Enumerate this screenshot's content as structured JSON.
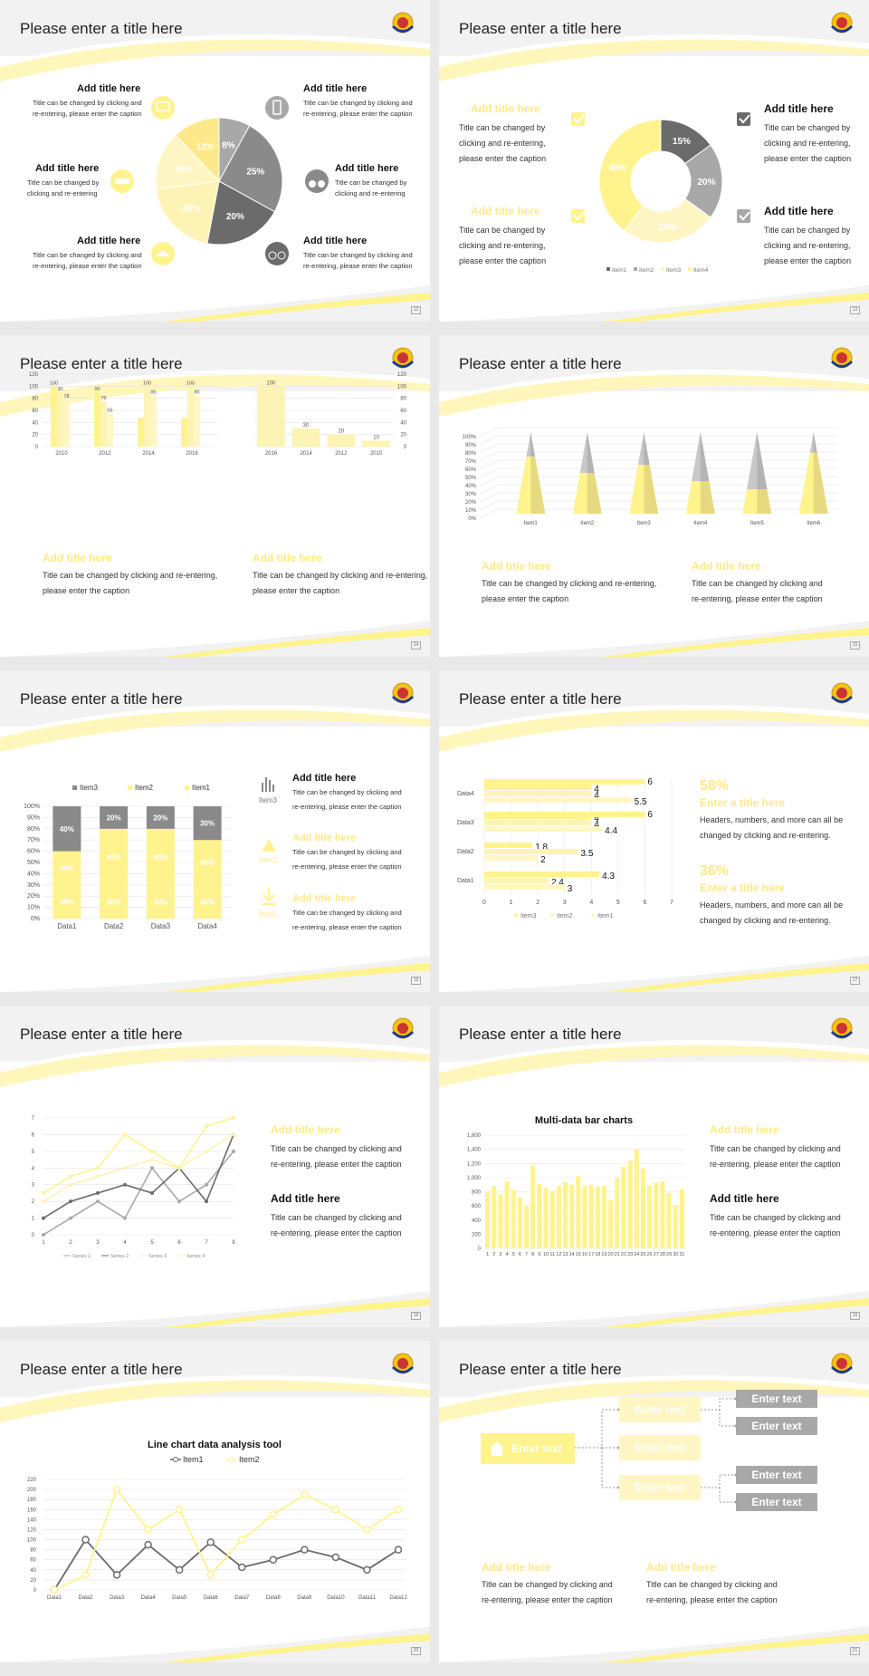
{
  "colors": {
    "yellow": "#fff38e",
    "lightyellow": "#fdf3b4",
    "paleyellow": "#fff6c4",
    "gray": "#8a8a8a",
    "darkgray": "#6b6b6b",
    "midgray": "#a8a8a8",
    "lightgray": "#c8c8c8"
  },
  "slides": {
    "s12": {
      "title": "Please enter a title here",
      "num": "12",
      "items": [
        {
          "t": "Add title here",
          "c": [
            "Title can be changed by clicking and",
            "re-entering, please enter the caption"
          ]
        },
        {
          "t": "Add title here",
          "c": [
            "Title can be changed by clicking and",
            "re-entering, please enter the caption"
          ]
        },
        {
          "t": "Add title here",
          "c": [
            "Title can be changed by",
            "clicking and re-entering"
          ]
        },
        {
          "t": "Add title here",
          "c": [
            "Title can be changed by",
            "clicking and re-entering"
          ]
        },
        {
          "t": "Add title here",
          "c": [
            "Title can be changed by clicking and",
            "re-entering, please enter the caption"
          ]
        },
        {
          "t": "Add title here",
          "c": [
            "Title can be changed by clicking and",
            "re-entering, please enter the caption"
          ]
        }
      ],
      "pie_labels": [
        "8%",
        "25%",
        "20%",
        "12%",
        "15%",
        "20%"
      ],
      "icons": [
        "monitor-icon",
        "phone-icon",
        "car-icon",
        "binoculars-icon",
        "hat-icon",
        "bicycle-icon"
      ]
    },
    "s13": {
      "title": "Please enter a title here",
      "num": "13",
      "items": [
        {
          "t": "Add title here",
          "c": [
            "Title can be changed by",
            "clicking and re-entering,",
            "please enter the caption"
          ]
        },
        {
          "t": "Add title here",
          "c": [
            "Title can be changed by",
            "clicking and re-entering,",
            "please enter the caption"
          ]
        },
        {
          "t": "Add title here",
          "c": [
            "Title can be changed by",
            "clicking and re-entering,",
            "please enter the caption"
          ]
        },
        {
          "t": "Add title here",
          "c": [
            "Title can be changed by",
            "clicking and re-entering,",
            "please enter the caption"
          ]
        }
      ],
      "labels": [
        "15%",
        "20%",
        "25%",
        "40%"
      ],
      "legend": [
        "Item1",
        "Item2",
        "Item3",
        "Item4"
      ]
    },
    "s14": {
      "title": "Please enter a title here",
      "num": "14",
      "items": [
        {
          "t": "Add title here",
          "c": [
            "Title can be changed by clicking and re-entering,",
            "please enter the caption"
          ]
        },
        {
          "t": "Add title here",
          "c": [
            "Title can be changed by clicking and re-entering,",
            "please enter the caption"
          ]
        }
      ]
    },
    "s15": {
      "title": "Please enter a title here",
      "num": "15",
      "items": [
        {
          "t": "Add title here",
          "c": [
            "Title can be changed by clicking and re-entering,",
            "please enter the caption"
          ]
        },
        {
          "t": "Add title here",
          "c": [
            "Title can be changed by clicking and",
            "re-entering, please enter the caption"
          ]
        }
      ]
    },
    "s16": {
      "title": "Please enter a title here",
      "num": "16",
      "items": [
        {
          "t": "Add title here",
          "c": [
            "Title can be changed by clicking and",
            "re-entering, please enter the caption"
          ],
          "i": "Item3"
        },
        {
          "t": "Add title here",
          "c": [
            "Title can be changed by clicking and",
            "re-entering, please enter the caption"
          ],
          "i": "Item2"
        },
        {
          "t": "Add title here",
          "c": [
            "Title can be changed by clicking and",
            "re-entering, please enter the caption"
          ],
          "i": "Item1"
        }
      ]
    },
    "s17": {
      "title": "Please enter a title here",
      "num": "17",
      "items": [
        {
          "p": "58%",
          "t": "Enter a title here",
          "c": [
            "Headers, numbers, and more can all be",
            "changed by clicking and re-entering."
          ]
        },
        {
          "p": "36%",
          "t": "Enter a title here",
          "c": [
            "Headers, numbers, and more can all be",
            "changed by clicking and re-entering."
          ]
        }
      ]
    },
    "s18": {
      "title": "Please enter a title here",
      "num": "18",
      "items": [
        {
          "t": "Add title here",
          "c": [
            "Title can be changed by clicking and",
            "re-entering, please enter the caption"
          ]
        },
        {
          "t": "Add title here",
          "c": [
            "Title can be changed by clicking and",
            "re-entering, please enter the caption"
          ]
        }
      ]
    },
    "s19": {
      "title": "Please enter a title here",
      "num": "19",
      "items": [
        {
          "t": "Add title here",
          "c": [
            "Title can be changed by clicking and",
            "re-entering, please enter the caption"
          ]
        },
        {
          "t": "Add title here",
          "c": [
            "Title can be changed by clicking and",
            "re-entering, please enter the caption"
          ]
        }
      ]
    },
    "s20": {
      "title": "Please enter a title here",
      "num": "20"
    },
    "s21": {
      "title": "Please enter a title here",
      "num": "21",
      "root": "Enter text",
      "mid": [
        "Enter text",
        "Enter text",
        "Enter text"
      ],
      "leaf": [
        "Enter text",
        "Enter text",
        "Enter text",
        "Enter text"
      ],
      "items": [
        {
          "t": "Add title here",
          "c": [
            "Title can be changed by clicking and",
            "re-entering, please enter the caption"
          ]
        },
        {
          "t": "Add title here",
          "c": [
            "Title can be changed by clicking and",
            "re-entering, please enter the caption"
          ]
        }
      ]
    }
  },
  "chart_data": [
    {
      "id": "pie-12",
      "type": "pie",
      "values": [
        8,
        25,
        20,
        20,
        15,
        12
      ],
      "labels": [
        "8%",
        "25%",
        "20%",
        "20%",
        "15%",
        "12%"
      ]
    },
    {
      "id": "donut-13",
      "type": "pie",
      "categories": [
        "Item1",
        "Item2",
        "Item3",
        "Item4"
      ],
      "values": [
        15,
        20,
        25,
        40
      ],
      "legend": "bottom"
    },
    {
      "id": "bar-14a",
      "type": "bar",
      "categories": [
        "2010",
        "2012",
        "2014",
        "2016"
      ],
      "series": [
        {
          "values": [
            100,
            90,
            48,
            48
          ]
        },
        {
          "values": [
            90,
            75,
            100,
            100
          ]
        },
        {
          "values": [
            78,
            55,
            85,
            85
          ]
        }
      ],
      "ylim": [
        0,
        120
      ],
      "data_labels": [
        [
          100,
          90,
          78
        ],
        [
          90,
          75,
          55
        ],
        [
          null,
          100,
          85
        ],
        [
          null,
          100,
          85
        ]
      ]
    },
    {
      "id": "bar-14b",
      "type": "bar",
      "categories": [
        "2016",
        "2014",
        "2012",
        "2010"
      ],
      "values": [
        100,
        30,
        20,
        10
      ],
      "ylim": [
        0,
        120
      ]
    },
    {
      "id": "cone-15",
      "type": "bar",
      "categories": [
        "Item1",
        "Item2",
        "Item3",
        "Item4",
        "Item5",
        "Item6"
      ],
      "series": [
        {
          "values": [
            70,
            50,
            60,
            40,
            30,
            75
          ]
        },
        {
          "values": [
            30,
            50,
            40,
            60,
            70,
            25
          ]
        }
      ],
      "ylim": [
        0,
        100
      ],
      "ytick_suffix": "%"
    },
    {
      "id": "stack-16",
      "type": "bar",
      "categories": [
        "Data1",
        "Data2",
        "Data3",
        "Data4"
      ],
      "series": [
        {
          "name": "Item1",
          "values": [
            30,
            30,
            30,
            30
          ]
        },
        {
          "name": "Item2",
          "values": [
            30,
            50,
            50,
            40
          ]
        },
        {
          "name": "Item3",
          "values": [
            40,
            20,
            20,
            30
          ]
        }
      ],
      "ylim": [
        0,
        100
      ],
      "legend": "top"
    },
    {
      "id": "hbar-17",
      "type": "bar",
      "categories": [
        "Data1",
        "Data2",
        "Data3",
        "Data4"
      ],
      "series": [
        {
          "name": "Item3",
          "values": [
            4.3,
            1.8,
            4,
            4
          ]
        },
        {
          "name": "Item2",
          "values": [
            2.4,
            3.5,
            4,
            4
          ]
        },
        {
          "name": "Item1",
          "values": [
            3,
            2,
            4.4,
            5.5
          ]
        }
      ],
      "extra": [
        6,
        6
      ],
      "xlim": [
        0,
        7
      ],
      "legend": "bottom"
    },
    {
      "id": "line-18",
      "type": "line",
      "x": [
        1,
        2,
        3,
        4,
        5,
        6,
        7,
        8
      ],
      "series": [
        {
          "name": "Series 1",
          "values": [
            0,
            1,
            2,
            1,
            4,
            2,
            3,
            5
          ]
        },
        {
          "name": "Series 2",
          "values": [
            1,
            2,
            2.5,
            3,
            2.5,
            4,
            2,
            6
          ]
        },
        {
          "name": "Series 3",
          "values": [
            2,
            3,
            3.5,
            4,
            4.5,
            4,
            5,
            6
          ]
        },
        {
          "name": "Series 4",
          "values": [
            2.5,
            3.5,
            4,
            6,
            5,
            4,
            6.5,
            7
          ]
        }
      ],
      "ylim": [
        0,
        7
      ]
    },
    {
      "id": "bar-19",
      "type": "bar",
      "title": "Multi-data bar charts",
      "categories": [
        "1",
        "2",
        "3",
        "4",
        "5",
        "6",
        "7",
        "8",
        "9",
        "10",
        "11",
        "12",
        "13",
        "14",
        "15",
        "16",
        "17",
        "18",
        "19",
        "20",
        "21",
        "22",
        "23",
        "24",
        "25",
        "26",
        "27",
        "28",
        "29",
        "30",
        "31"
      ],
      "values": [
        800,
        880,
        760,
        950,
        830,
        720,
        600,
        1170,
        910,
        860,
        800,
        880,
        940,
        900,
        1020,
        880,
        900,
        870,
        880,
        690,
        1000,
        1160,
        1240,
        1400,
        1130,
        890,
        930,
        950,
        780,
        610,
        840
      ],
      "ylim": [
        0,
        1600
      ]
    },
    {
      "id": "line-20",
      "type": "line",
      "title": "Line chart data analysis tool",
      "categories": [
        "Data1",
        "Data2",
        "Data3",
        "Data4",
        "Data5",
        "Data6",
        "Data7",
        "Data8",
        "Data9",
        "Data10",
        "Data11",
        "Data12"
      ],
      "series": [
        {
          "name": "Item1",
          "values": [
            0,
            100,
            30,
            90,
            40,
            95,
            45,
            60,
            80,
            65,
            40,
            80
          ]
        },
        {
          "name": "Item2",
          "values": [
            0,
            30,
            200,
            120,
            160,
            30,
            100,
            150,
            190,
            160,
            120,
            160
          ]
        }
      ],
      "ylim": [
        0,
        220
      ],
      "legend": "top"
    }
  ]
}
